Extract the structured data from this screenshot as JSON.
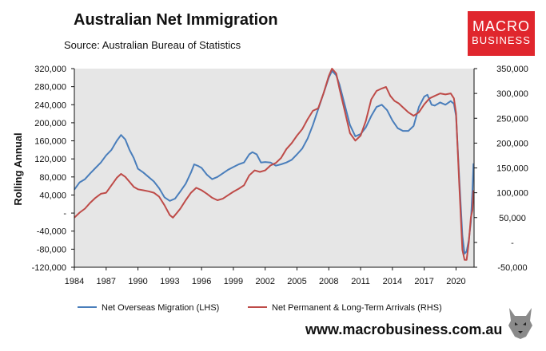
{
  "header": {
    "title": "Australian Net Immigration",
    "source": "Source: Australian Bureau of Statistics"
  },
  "logo": {
    "line1": "MACRO",
    "line2": "BUSINESS",
    "color": "#e0262d"
  },
  "footer": {
    "website": "www.macrobusiness.com.au"
  },
  "colors": {
    "nom": "#4a7ebb",
    "pltm": "#be4b48",
    "plot_bg": "#e6e6e6"
  },
  "chart_data": {
    "type": "line",
    "title": "Australian Net Immigration",
    "ylabel": "Rolling Annual",
    "x_ticks": [
      "1984",
      "1987",
      "1990",
      "1993",
      "1996",
      "1999",
      "2002",
      "2005",
      "2008",
      "2011",
      "2014",
      "2017",
      "2020"
    ],
    "xlim": [
      1984,
      2021.7
    ],
    "ylim_left": [
      -120000,
      320000
    ],
    "ylim_right": [
      -50000,
      350000
    ],
    "y_ticks_left": [
      "320,000",
      "280,000",
      "240,000",
      "200,000",
      "160,000",
      "120,000",
      "80,000",
      "40,000",
      "-",
      "-40,000",
      "-80,000",
      "-120,000"
    ],
    "y_ticks_right": [
      "350,000",
      "300,000",
      "250,000",
      "200,000",
      "150,000",
      "100,000",
      "50,000",
      "-",
      "-50,000"
    ],
    "grid": false,
    "legend_position": "bottom",
    "series": [
      {
        "name": "Net Overseas Migration (LHS)",
        "axis": "left",
        "points": [
          [
            1984.0,
            52000
          ],
          [
            1984.5,
            68000
          ],
          [
            1985.0,
            75000
          ],
          [
            1985.5,
            88000
          ],
          [
            1986.0,
            100000
          ],
          [
            1986.5,
            112000
          ],
          [
            1987.0,
            128000
          ],
          [
            1987.5,
            140000
          ],
          [
            1988.0,
            160000
          ],
          [
            1988.4,
            173000
          ],
          [
            1988.8,
            163000
          ],
          [
            1989.2,
            140000
          ],
          [
            1989.6,
            122000
          ],
          [
            1990.0,
            98000
          ],
          [
            1990.5,
            90000
          ],
          [
            1991.0,
            80000
          ],
          [
            1991.5,
            70000
          ],
          [
            1992.0,
            55000
          ],
          [
            1992.5,
            35000
          ],
          [
            1993.0,
            27000
          ],
          [
            1993.5,
            32000
          ],
          [
            1994.0,
            48000
          ],
          [
            1994.5,
            65000
          ],
          [
            1995.0,
            90000
          ],
          [
            1995.3,
            108000
          ],
          [
            1995.7,
            104000
          ],
          [
            1996.0,
            100000
          ],
          [
            1996.5,
            85000
          ],
          [
            1997.0,
            75000
          ],
          [
            1997.5,
            80000
          ],
          [
            1998.0,
            88000
          ],
          [
            1998.5,
            96000
          ],
          [
            1999.0,
            102000
          ],
          [
            1999.5,
            108000
          ],
          [
            2000.0,
            112000
          ],
          [
            2000.5,
            130000
          ],
          [
            2000.8,
            135000
          ],
          [
            2001.2,
            130000
          ],
          [
            2001.6,
            112000
          ],
          [
            2002.0,
            113000
          ],
          [
            2002.5,
            112000
          ],
          [
            2003.0,
            105000
          ],
          [
            2003.5,
            108000
          ],
          [
            2004.0,
            112000
          ],
          [
            2004.5,
            118000
          ],
          [
            2005.0,
            130000
          ],
          [
            2005.5,
            143000
          ],
          [
            2006.0,
            165000
          ],
          [
            2006.5,
            195000
          ],
          [
            2007.0,
            230000
          ],
          [
            2007.5,
            265000
          ],
          [
            2008.0,
            300000
          ],
          [
            2008.3,
            315000
          ],
          [
            2008.7,
            305000
          ],
          [
            2009.0,
            285000
          ],
          [
            2009.5,
            240000
          ],
          [
            2010.0,
            195000
          ],
          [
            2010.5,
            170000
          ],
          [
            2011.0,
            175000
          ],
          [
            2011.5,
            190000
          ],
          [
            2012.0,
            215000
          ],
          [
            2012.5,
            235000
          ],
          [
            2013.0,
            240000
          ],
          [
            2013.5,
            228000
          ],
          [
            2014.0,
            205000
          ],
          [
            2014.5,
            188000
          ],
          [
            2015.0,
            182000
          ],
          [
            2015.5,
            182000
          ],
          [
            2016.0,
            193000
          ],
          [
            2016.5,
            235000
          ],
          [
            2017.0,
            258000
          ],
          [
            2017.3,
            262000
          ],
          [
            2017.7,
            240000
          ],
          [
            2018.0,
            238000
          ],
          [
            2018.5,
            245000
          ],
          [
            2019.0,
            240000
          ],
          [
            2019.5,
            248000
          ],
          [
            2019.8,
            242000
          ],
          [
            2020.0,
            215000
          ],
          [
            2020.3,
            80000
          ],
          [
            2020.6,
            -50000
          ],
          [
            2020.8,
            -90000
          ],
          [
            2021.0,
            -85000
          ],
          [
            2021.2,
            -60000
          ],
          [
            2021.4,
            -20000
          ],
          [
            2021.55,
            50000
          ],
          [
            2021.65,
            110000
          ]
        ]
      },
      {
        "name": "Net Permanent & Long-Term Arrivals (RHS)",
        "axis": "right",
        "points": [
          [
            1984.0,
            50000
          ],
          [
            1984.5,
            60000
          ],
          [
            1985.0,
            68000
          ],
          [
            1985.5,
            80000
          ],
          [
            1986.0,
            90000
          ],
          [
            1986.5,
            98000
          ],
          [
            1987.0,
            100000
          ],
          [
            1987.5,
            115000
          ],
          [
            1988.0,
            130000
          ],
          [
            1988.4,
            138000
          ],
          [
            1988.8,
            132000
          ],
          [
            1989.2,
            122000
          ],
          [
            1989.6,
            112000
          ],
          [
            1990.0,
            107000
          ],
          [
            1990.5,
            105000
          ],
          [
            1991.0,
            103000
          ],
          [
            1991.5,
            100000
          ],
          [
            1992.0,
            92000
          ],
          [
            1992.5,
            75000
          ],
          [
            1993.0,
            55000
          ],
          [
            1993.3,
            50000
          ],
          [
            1993.7,
            60000
          ],
          [
            1994.0,
            68000
          ],
          [
            1994.5,
            85000
          ],
          [
            1995.0,
            100000
          ],
          [
            1995.5,
            110000
          ],
          [
            1996.0,
            105000
          ],
          [
            1996.5,
            98000
          ],
          [
            1997.0,
            90000
          ],
          [
            1997.5,
            85000
          ],
          [
            1998.0,
            88000
          ],
          [
            1998.5,
            95000
          ],
          [
            1999.0,
            102000
          ],
          [
            1999.5,
            108000
          ],
          [
            2000.0,
            115000
          ],
          [
            2000.5,
            135000
          ],
          [
            2001.0,
            145000
          ],
          [
            2001.5,
            142000
          ],
          [
            2002.0,
            145000
          ],
          [
            2002.5,
            155000
          ],
          [
            2003.0,
            160000
          ],
          [
            2003.5,
            170000
          ],
          [
            2004.0,
            188000
          ],
          [
            2004.5,
            200000
          ],
          [
            2005.0,
            215000
          ],
          [
            2005.5,
            228000
          ],
          [
            2006.0,
            248000
          ],
          [
            2006.5,
            265000
          ],
          [
            2007.0,
            270000
          ],
          [
            2007.5,
            300000
          ],
          [
            2008.0,
            335000
          ],
          [
            2008.3,
            350000
          ],
          [
            2008.7,
            340000
          ],
          [
            2009.0,
            310000
          ],
          [
            2009.5,
            265000
          ],
          [
            2010.0,
            220000
          ],
          [
            2010.5,
            205000
          ],
          [
            2011.0,
            215000
          ],
          [
            2011.5,
            245000
          ],
          [
            2012.0,
            288000
          ],
          [
            2012.5,
            305000
          ],
          [
            2013.0,
            310000
          ],
          [
            2013.4,
            313000
          ],
          [
            2013.8,
            295000
          ],
          [
            2014.2,
            285000
          ],
          [
            2014.6,
            280000
          ],
          [
            2015.0,
            272000
          ],
          [
            2015.5,
            262000
          ],
          [
            2016.0,
            255000
          ],
          [
            2016.5,
            262000
          ],
          [
            2017.0,
            278000
          ],
          [
            2017.5,
            290000
          ],
          [
            2018.0,
            295000
          ],
          [
            2018.5,
            300000
          ],
          [
            2019.0,
            298000
          ],
          [
            2019.5,
            300000
          ],
          [
            2019.8,
            290000
          ],
          [
            2020.0,
            260000
          ],
          [
            2020.3,
            120000
          ],
          [
            2020.6,
            -15000
          ],
          [
            2020.8,
            -35000
          ],
          [
            2021.0,
            -35000
          ],
          [
            2021.2,
            0
          ],
          [
            2021.4,
            50000
          ],
          [
            2021.55,
            65000
          ],
          [
            2021.65,
            105000
          ]
        ]
      }
    ]
  }
}
